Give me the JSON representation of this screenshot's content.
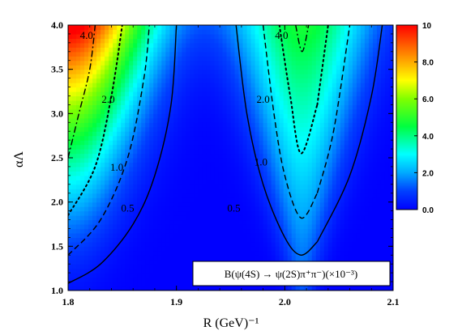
{
  "chart_data": {
    "type": "heatmap",
    "xlabel": "R (GeV)⁻¹",
    "ylabel": "αΛ",
    "xlim": [
      1.8,
      2.1
    ],
    "ylim": [
      1.0,
      4.0
    ],
    "x_ticks": [
      "1.8",
      "1.9",
      "2.0",
      "2.1"
    ],
    "y_ticks": [
      "1.0",
      "1.5",
      "2.0",
      "2.5",
      "3.0",
      "3.5",
      "4.0"
    ],
    "colorbar": {
      "range": [
        0.0,
        10.0
      ],
      "ticks": [
        "0.0",
        "2.0",
        "4.0",
        "6.0",
        "8.0",
        "10"
      ],
      "colors": [
        "#0000ff",
        "#0064ff",
        "#00ffff",
        "#00ff00",
        "#ffff00",
        "#ff8000",
        "#ff0000"
      ]
    },
    "annotation": "B(ψ(4S) → ψ(2S)π⁺π⁻)(×10⁻³)",
    "contours": [
      {
        "level": 0.5,
        "label": "0.5",
        "style": "solid",
        "points_left": [
          [
            1.8,
            1.08
          ],
          [
            1.83,
            1.3
          ],
          [
            1.86,
            1.75
          ],
          [
            1.88,
            2.3
          ],
          [
            1.895,
            3.1
          ],
          [
            1.9,
            4.0
          ]
        ],
        "points_right_a": [
          [
            1.955,
            4.0
          ],
          [
            1.965,
            3.0
          ],
          [
            1.98,
            2.2
          ],
          [
            2.0,
            1.6
          ],
          [
            2.015,
            1.4
          ],
          [
            2.03,
            1.55
          ]
        ],
        "points_right_b": [
          [
            2.03,
            1.55
          ],
          [
            2.06,
            2.3
          ],
          [
            2.08,
            3.2
          ],
          [
            2.09,
            4.0
          ]
        ]
      },
      {
        "level": 1.0,
        "label": "1.0",
        "style": "dashed",
        "points_left": [
          [
            1.8,
            1.4
          ],
          [
            1.83,
            1.8
          ],
          [
            1.855,
            2.5
          ],
          [
            1.87,
            3.4
          ],
          [
            1.875,
            4.0
          ]
        ],
        "points_right_a": [
          [
            1.98,
            4.0
          ],
          [
            1.99,
            3.0
          ],
          [
            2.0,
            2.3
          ],
          [
            2.015,
            1.82
          ],
          [
            2.03,
            2.1
          ]
        ],
        "points_right_b": [
          [
            2.03,
            2.1
          ],
          [
            2.045,
            2.8
          ],
          [
            2.06,
            4.0
          ]
        ]
      },
      {
        "level": 2.0,
        "label": "2.0",
        "style": "dotted",
        "points_left": [
          [
            1.8,
            1.85
          ],
          [
            1.825,
            2.4
          ],
          [
            1.84,
            3.2
          ],
          [
            1.85,
            4.0
          ]
        ],
        "points_right_a": [
          [
            1.995,
            4.0
          ],
          [
            2.005,
            3.2
          ],
          [
            2.015,
            2.55
          ],
          [
            2.03,
            3.1
          ]
        ],
        "points_right_b": [
          [
            2.03,
            3.1
          ],
          [
            2.04,
            4.0
          ]
        ]
      },
      {
        "level": 4.0,
        "label": "4.0",
        "style": "dashdot",
        "points_left": [
          [
            1.8,
            2.5
          ],
          [
            1.81,
            3.0
          ],
          [
            1.82,
            3.5
          ],
          [
            1.825,
            4.0
          ]
        ],
        "points_right_a": [
          [
            2.01,
            4.0
          ],
          [
            2.016,
            3.7
          ],
          [
            2.022,
            4.0
          ]
        ],
        "points_right_b": []
      }
    ],
    "contour_labels": [
      {
        "text": "4.0",
        "x": 1.817,
        "y": 3.87
      },
      {
        "text": "2.0",
        "x": 1.837,
        "y": 3.15
      },
      {
        "text": "1.0",
        "x": 1.845,
        "y": 2.38
      },
      {
        "text": "0.5",
        "x": 1.855,
        "y": 1.92
      },
      {
        "text": "4.0",
        "x": 1.997,
        "y": 3.87
      },
      {
        "text": "2.0",
        "x": 1.98,
        "y": 3.15
      },
      {
        "text": "1.0",
        "x": 1.978,
        "y": 2.44
      },
      {
        "text": "0.5",
        "x": 1.953,
        "y": 1.92
      }
    ]
  }
}
